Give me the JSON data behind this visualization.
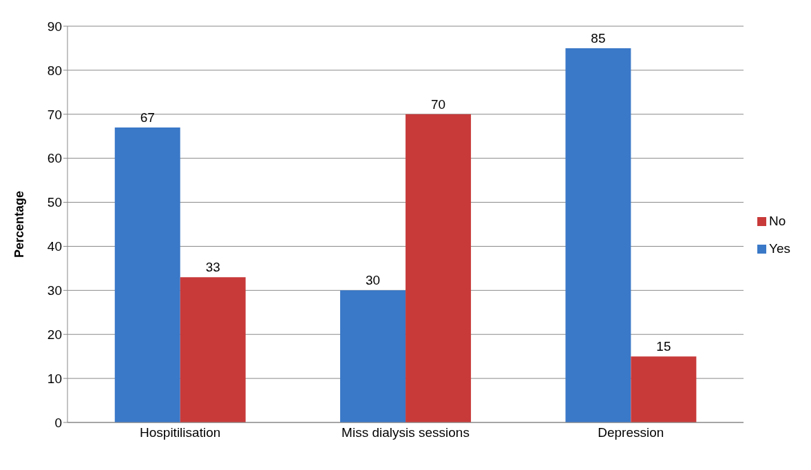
{
  "chart_data": {
    "type": "bar",
    "ylabel": "Percentage",
    "categories": [
      "Hospitilisation",
      "Miss dialysis sessions",
      "Depression"
    ],
    "series": [
      {
        "name": "Yes",
        "color": "#3a78c8",
        "values": [
          67,
          30,
          85
        ]
      },
      {
        "name": "No",
        "color": "#c83a3a",
        "values": [
          33,
          70,
          15
        ]
      }
    ],
    "ylim": [
      0,
      90
    ],
    "yticks": [
      0,
      10,
      20,
      30,
      40,
      50,
      60,
      70,
      80,
      90
    ],
    "grid": "y",
    "legend": "right",
    "data_labels": true
  }
}
